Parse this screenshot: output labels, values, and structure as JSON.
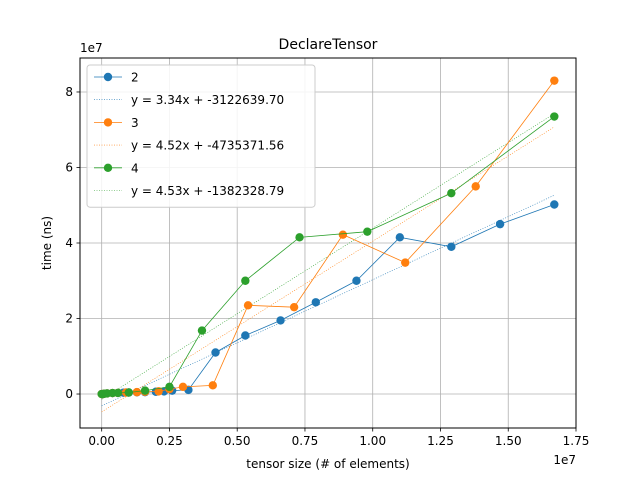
{
  "chart_data": {
    "type": "line",
    "title": "DeclareTensor",
    "xlabel": "tensor size (# of elements)",
    "ylabel": "time (ns)",
    "x_offset_label": "1e7",
    "y_offset_label": "1e7",
    "xlim": [
      -800000,
      17500000
    ],
    "ylim": [
      -9000000,
      89000000
    ],
    "xticks": [
      0,
      2500000,
      5000000,
      7500000,
      10000000,
      12500000,
      15000000,
      17500000
    ],
    "xtick_labels": [
      "0.00",
      "0.25",
      "0.50",
      "0.75",
      "1.00",
      "1.25",
      "1.50",
      "1.75"
    ],
    "yticks": [
      0,
      20000000,
      40000000,
      60000000,
      80000000
    ],
    "ytick_labels": [
      "0",
      "2",
      "4",
      "6",
      "8"
    ],
    "grid": true,
    "legend_position": "top-left",
    "series": [
      {
        "name": "2",
        "color": "#1f77b4",
        "x": [
          0,
          50000,
          100000,
          200000,
          400000,
          600000,
          800000,
          1000000,
          1300000,
          1600000,
          2000000,
          2300000,
          2600000,
          3200000,
          4200000,
          5300000,
          6600000,
          7900000,
          9400000,
          11000000,
          12900000,
          14700000,
          16700000
        ],
        "y": [
          0,
          0,
          100000,
          150000,
          250000,
          300000,
          350000,
          400000,
          450000,
          500000,
          600000,
          700000,
          900000,
          1100000,
          11000000,
          15500000,
          19500000,
          24300000,
          30000000,
          41500000,
          39000000,
          45000000,
          50200000
        ],
        "fit_label": "y = 3.34x + -3122639.70",
        "fit": {
          "slope": 3.34,
          "intercept": -3122639.7
        }
      },
      {
        "name": "3",
        "color": "#ff7f0e",
        "x": [
          0,
          50000,
          100000,
          200000,
          400000,
          600000,
          900000,
          1300000,
          1600000,
          2100000,
          2500000,
          3000000,
          4100000,
          5400000,
          7100000,
          8900000,
          11200000,
          13800000,
          16700000
        ],
        "y": [
          0,
          0,
          100000,
          150000,
          250000,
          300000,
          400000,
          500000,
          600000,
          700000,
          1300000,
          1900000,
          2300000,
          23500000,
          23000000,
          42200000,
          34800000,
          55000000,
          83000000
        ],
        "fit_label": "y = 4.52x + -4735371.56",
        "fit": {
          "slope": 4.52,
          "intercept": -4735371.56
        }
      },
      {
        "name": "4",
        "color": "#2ca02c",
        "x": [
          0,
          50000,
          100000,
          200000,
          400000,
          600000,
          1000000,
          1600000,
          2500000,
          3700000,
          5300000,
          7300000,
          9800000,
          12900000,
          16700000
        ],
        "y": [
          0,
          0,
          100000,
          150000,
          250000,
          300000,
          400000,
          900000,
          1900000,
          16800000,
          30000000,
          41500000,
          43000000,
          53200000,
          73500000
        ],
        "fit_label": "y = 4.53x + -1382328.79",
        "fit": {
          "slope": 4.53,
          "intercept": -1382328.79
        }
      }
    ]
  }
}
